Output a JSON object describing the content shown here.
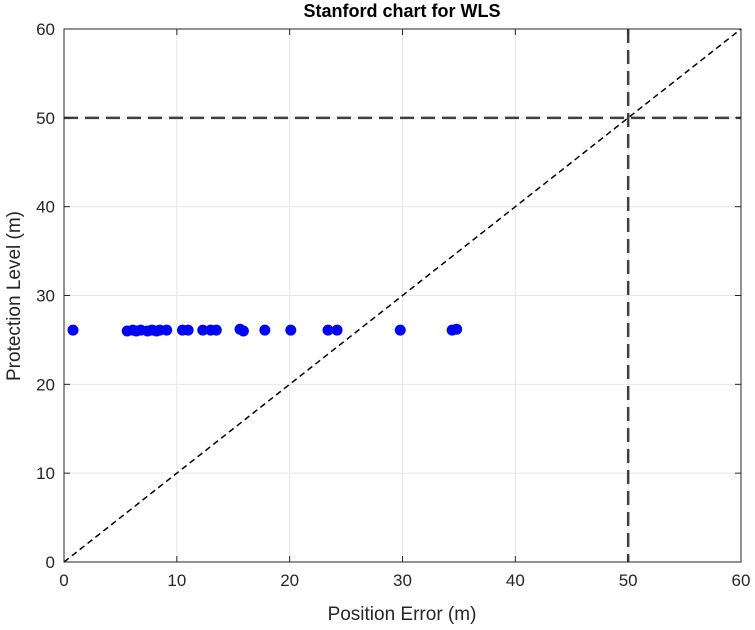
{
  "chart_data": {
    "type": "scatter",
    "title": "Stanford chart for WLS",
    "xlabel": "Position Error (m)",
    "ylabel": "Protection Level (m)",
    "xlim": [
      0,
      60
    ],
    "ylim": [
      0,
      60
    ],
    "xticks": [
      "0",
      "10",
      "20",
      "30",
      "40",
      "50",
      "60"
    ],
    "yticks": [
      "0",
      "10",
      "20",
      "30",
      "40",
      "50",
      "60"
    ],
    "grid": true,
    "marker_color": "#0000ff",
    "points": [
      {
        "x": 0.8,
        "y": 26.1
      },
      {
        "x": 5.6,
        "y": 26.0
      },
      {
        "x": 6.1,
        "y": 26.1
      },
      {
        "x": 6.4,
        "y": 26.0
      },
      {
        "x": 6.8,
        "y": 26.1
      },
      {
        "x": 7.4,
        "y": 26.0
      },
      {
        "x": 7.8,
        "y": 26.1
      },
      {
        "x": 8.2,
        "y": 26.0
      },
      {
        "x": 8.5,
        "y": 26.1
      },
      {
        "x": 9.1,
        "y": 26.1
      },
      {
        "x": 10.5,
        "y": 26.1
      },
      {
        "x": 11.0,
        "y": 26.1
      },
      {
        "x": 12.3,
        "y": 26.1
      },
      {
        "x": 13.0,
        "y": 26.1
      },
      {
        "x": 13.5,
        "y": 26.1
      },
      {
        "x": 15.6,
        "y": 26.2
      },
      {
        "x": 15.9,
        "y": 26.0
      },
      {
        "x": 17.8,
        "y": 26.1
      },
      {
        "x": 20.1,
        "y": 26.1
      },
      {
        "x": 23.4,
        "y": 26.1
      },
      {
        "x": 24.2,
        "y": 26.1
      },
      {
        "x": 29.8,
        "y": 26.1
      },
      {
        "x": 34.4,
        "y": 26.1
      },
      {
        "x": 34.8,
        "y": 26.2
      }
    ],
    "reference_lines": [
      {
        "kind": "diagonal",
        "from": [
          0,
          0
        ],
        "to": [
          60,
          60
        ],
        "style": "dashed",
        "color": "#000000"
      },
      {
        "kind": "horizontal",
        "y": 50,
        "style": "dashed",
        "color": "#404040"
      },
      {
        "kind": "vertical",
        "x": 50,
        "style": "dashed",
        "color": "#404040"
      }
    ]
  }
}
